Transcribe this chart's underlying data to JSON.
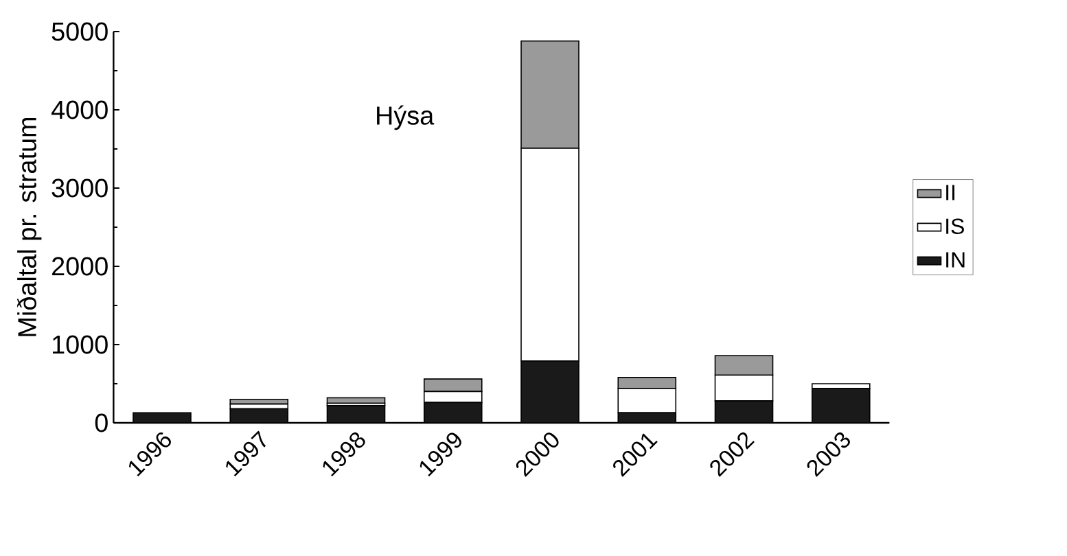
{
  "chart_data": {
    "type": "bar",
    "stacked": true,
    "ylabel": "Miðaltal pr. stratum",
    "annotations": [
      "Hýsa"
    ],
    "categories": [
      "1996",
      "1997",
      "1998",
      "1999",
      "2000",
      "2001",
      "2002",
      "2003"
    ],
    "series": [
      {
        "name": "IN",
        "color": "#1a1a1a",
        "values": [
          130,
          180,
          220,
          260,
          790,
          130,
          280,
          440
        ]
      },
      {
        "name": "IS",
        "color": "#ffffff",
        "values": [
          0,
          60,
          30,
          140,
          2720,
          310,
          330,
          60
        ]
      },
      {
        "name": "II",
        "color": "#9a9a9a",
        "values": [
          0,
          60,
          70,
          160,
          1370,
          140,
          250,
          0
        ]
      }
    ],
    "ylim": [
      0,
      5000
    ],
    "yticks": [
      0,
      1000,
      2000,
      3000,
      4000,
      5000
    ],
    "grid": false,
    "legend": "right"
  }
}
